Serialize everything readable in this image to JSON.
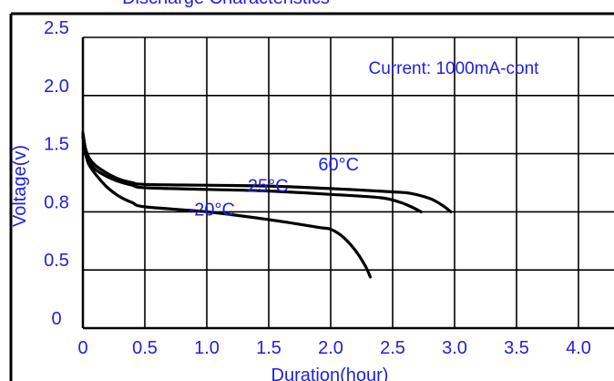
{
  "chart_data": {
    "type": "line",
    "title": "Discharge Characteristics",
    "xlabel": "Duration(hour)",
    "ylabel": "Voltage(v)",
    "xlim": [
      0,
      4.0
    ],
    "x_ticks": [
      "0",
      "0.5",
      "1.0",
      "1.5",
      "2.0",
      "2.5",
      "3.0",
      "3.5",
      "4.0"
    ],
    "y_ticks": [
      "0",
      "0.5",
      "0.8",
      "1.5",
      "2.0",
      "2.5"
    ],
    "grid": true,
    "annotation": "Current: 1000mA-cont",
    "series": [
      {
        "name": "60°C",
        "points": [
          [
            0.0,
            1.68
          ],
          [
            0.02,
            1.55
          ],
          [
            0.05,
            1.45
          ],
          [
            0.1,
            1.36
          ],
          [
            0.2,
            1.26
          ],
          [
            0.3,
            1.19
          ],
          [
            0.4,
            1.15
          ],
          [
            0.5,
            1.13
          ],
          [
            1.0,
            1.12
          ],
          [
            1.5,
            1.11
          ],
          [
            2.0,
            1.08
          ],
          [
            2.5,
            1.04
          ],
          [
            2.65,
            1.02
          ],
          [
            2.8,
            0.96
          ],
          [
            2.9,
            0.88
          ],
          [
            2.97,
            0.8
          ]
        ]
      },
      {
        "name": "25°C",
        "points": [
          [
            0.0,
            1.66
          ],
          [
            0.02,
            1.5
          ],
          [
            0.05,
            1.4
          ],
          [
            0.1,
            1.31
          ],
          [
            0.2,
            1.22
          ],
          [
            0.3,
            1.16
          ],
          [
            0.4,
            1.12
          ],
          [
            0.5,
            1.09
          ],
          [
            1.0,
            1.07
          ],
          [
            1.5,
            1.05
          ],
          [
            2.0,
            1.01
          ],
          [
            2.4,
            0.97
          ],
          [
            2.55,
            0.92
          ],
          [
            2.65,
            0.86
          ],
          [
            2.73,
            0.8
          ]
        ]
      },
      {
        "name": "-20°C",
        "points": [
          [
            0.0,
            1.64
          ],
          [
            0.03,
            1.45
          ],
          [
            0.06,
            1.34
          ],
          [
            0.12,
            1.22
          ],
          [
            0.2,
            1.09
          ],
          [
            0.3,
            0.98
          ],
          [
            0.4,
            0.91
          ],
          [
            0.5,
            0.86
          ],
          [
            1.0,
            0.8
          ],
          [
            1.5,
            0.76
          ],
          [
            1.9,
            0.72
          ],
          [
            2.0,
            0.71
          ],
          [
            2.1,
            0.67
          ],
          [
            2.2,
            0.6
          ],
          [
            2.28,
            0.52
          ],
          [
            2.32,
            0.44
          ]
        ]
      }
    ],
    "series_labels": [
      {
        "text": "60°C",
        "x": 1.9,
        "y": 1.3
      },
      {
        "text": "25°C",
        "x": 1.33,
        "y": 1.04
      },
      {
        "text": "-20°C",
        "x": 0.85,
        "y": 0.78
      }
    ]
  },
  "colors": {
    "text": "#1f1fe0",
    "line": "#000000",
    "grid": "#000000",
    "background": "#ffffff"
  }
}
